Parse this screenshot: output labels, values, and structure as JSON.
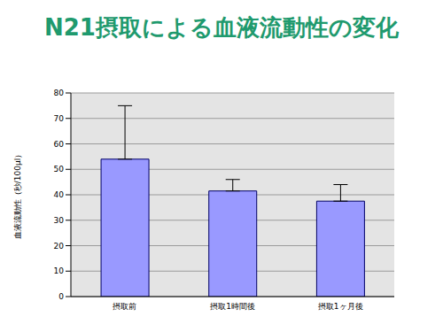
{
  "chart_data": {
    "type": "bar",
    "title": "N21摂取による血液流動性の変化",
    "y_label": "血液流動性（秒/100μl）",
    "categories": [
      "摂取前",
      "摂取1時間後",
      "摂取1ヶ月後"
    ],
    "values": [
      54,
      41.5,
      37.5
    ],
    "errors": [
      21,
      4.5,
      6.5
    ],
    "color": "#9999ff",
    "ylim": [
      0,
      80
    ],
    "yticks": [
      0,
      10,
      20,
      30,
      40,
      50,
      60,
      70,
      80
    ],
    "grid": true
  }
}
